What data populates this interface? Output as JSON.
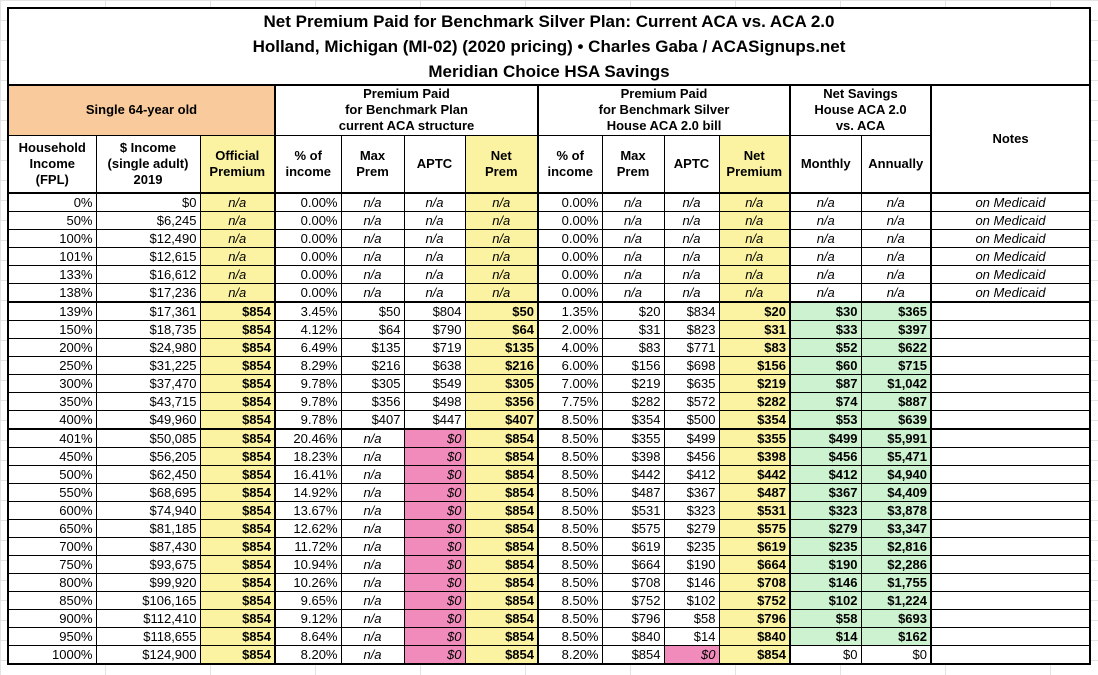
{
  "colors": {
    "orange": "#F9CB9C",
    "yellow": "#FBF3A1",
    "pink": "#F18BBB",
    "green": "#CCF2CF"
  },
  "chart_data": {
    "type": "table",
    "title": "Net Premium Paid for Benchmark Silver Plan: Current ACA vs. ACA 2.0",
    "subtitle": "Holland, Michigan (MI-02) (2020 pricing) • Charles Gaba / ACASignups.net",
    "subtitle2": "Meridian Choice HSA Savings",
    "column_groups": {
      "subject": "Single 64-year old",
      "current_aca": "Premium Paid\nfor Benchmark Plan\ncurrent ACA structure",
      "house_aca20": "Premium Paid\nfor Benchmark Silver\nHouse ACA 2.0 bill",
      "net_savings": "Net Savings\nHouse ACA 2.0\nvs. ACA",
      "notes": "Notes"
    },
    "columns": [
      {
        "label": "Household\nIncome\n(FPL)"
      },
      {
        "label": "$ Income\n(single adult)\n2019"
      },
      {
        "label": "Official\nPremium"
      },
      {
        "label": "% of\nincome"
      },
      {
        "label": "Max\nPrem"
      },
      {
        "label": "APTC"
      },
      {
        "label": "Net\nPrem"
      },
      {
        "label": "% of\nincome"
      },
      {
        "label": "Max\nPrem"
      },
      {
        "label": "APTC"
      },
      {
        "label": "Net\nPremium"
      },
      {
        "label": "Monthly"
      },
      {
        "label": "Annually"
      }
    ],
    "rows": [
      {
        "band": "medicaid",
        "cells": [
          "0%",
          "$0",
          "n/a",
          "0.00%",
          "n/a",
          "n/a",
          "n/a",
          "0.00%",
          "n/a",
          "n/a",
          "n/a",
          "n/a",
          "n/a",
          "on Medicaid"
        ]
      },
      {
        "band": "medicaid",
        "cells": [
          "50%",
          "$6,245",
          "n/a",
          "0.00%",
          "n/a",
          "n/a",
          "n/a",
          "0.00%",
          "n/a",
          "n/a",
          "n/a",
          "n/a",
          "n/a",
          "on Medicaid"
        ]
      },
      {
        "band": "medicaid",
        "cells": [
          "100%",
          "$12,490",
          "n/a",
          "0.00%",
          "n/a",
          "n/a",
          "n/a",
          "0.00%",
          "n/a",
          "n/a",
          "n/a",
          "n/a",
          "n/a",
          "on Medicaid"
        ]
      },
      {
        "band": "medicaid",
        "cells": [
          "101%",
          "$12,615",
          "n/a",
          "0.00%",
          "n/a",
          "n/a",
          "n/a",
          "0.00%",
          "n/a",
          "n/a",
          "n/a",
          "n/a",
          "n/a",
          "on Medicaid"
        ]
      },
      {
        "band": "medicaid",
        "cells": [
          "133%",
          "$16,612",
          "n/a",
          "0.00%",
          "n/a",
          "n/a",
          "n/a",
          "0.00%",
          "n/a",
          "n/a",
          "n/a",
          "n/a",
          "n/a",
          "on Medicaid"
        ]
      },
      {
        "band": "medicaid",
        "cells": [
          "138%",
          "$17,236",
          "n/a",
          "0.00%",
          "n/a",
          "n/a",
          "n/a",
          "0.00%",
          "n/a",
          "n/a",
          "n/a",
          "n/a",
          "n/a",
          "on Medicaid"
        ]
      },
      {
        "band": "subsidy",
        "cells": [
          "139%",
          "$17,361",
          "$854",
          "3.45%",
          "$50",
          "$804",
          "$50",
          "1.35%",
          "$20",
          "$834",
          "$20",
          "$30",
          "$365",
          ""
        ]
      },
      {
        "band": "subsidy",
        "cells": [
          "150%",
          "$18,735",
          "$854",
          "4.12%",
          "$64",
          "$790",
          "$64",
          "2.00%",
          "$31",
          "$823",
          "$31",
          "$33",
          "$397",
          ""
        ]
      },
      {
        "band": "subsidy",
        "cells": [
          "200%",
          "$24,980",
          "$854",
          "6.49%",
          "$135",
          "$719",
          "$135",
          "4.00%",
          "$83",
          "$771",
          "$83",
          "$52",
          "$622",
          ""
        ]
      },
      {
        "band": "subsidy",
        "cells": [
          "250%",
          "$31,225",
          "$854",
          "8.29%",
          "$216",
          "$638",
          "$216",
          "6.00%",
          "$156",
          "$698",
          "$156",
          "$60",
          "$715",
          ""
        ]
      },
      {
        "band": "subsidy",
        "cells": [
          "300%",
          "$37,470",
          "$854",
          "9.78%",
          "$305",
          "$549",
          "$305",
          "7.00%",
          "$219",
          "$635",
          "$219",
          "$87",
          "$1,042",
          ""
        ]
      },
      {
        "band": "subsidy",
        "cells": [
          "350%",
          "$43,715",
          "$854",
          "9.78%",
          "$356",
          "$498",
          "$356",
          "7.75%",
          "$282",
          "$572",
          "$282",
          "$74",
          "$887",
          ""
        ]
      },
      {
        "band": "subsidy",
        "cells": [
          "400%",
          "$49,960",
          "$854",
          "9.78%",
          "$407",
          "$447",
          "$407",
          "8.50%",
          "$354",
          "$500",
          "$354",
          "$53",
          "$639",
          ""
        ]
      },
      {
        "band": "cliff",
        "cells": [
          "401%",
          "$50,085",
          "$854",
          "20.46%",
          "n/a",
          "$0",
          "$854",
          "8.50%",
          "$355",
          "$499",
          "$355",
          "$499",
          "$5,991",
          ""
        ]
      },
      {
        "band": "cliff",
        "cells": [
          "450%",
          "$56,205",
          "$854",
          "18.23%",
          "n/a",
          "$0",
          "$854",
          "8.50%",
          "$398",
          "$456",
          "$398",
          "$456",
          "$5,471",
          ""
        ]
      },
      {
        "band": "cliff",
        "cells": [
          "500%",
          "$62,450",
          "$854",
          "16.41%",
          "n/a",
          "$0",
          "$854",
          "8.50%",
          "$442",
          "$412",
          "$442",
          "$412",
          "$4,940",
          ""
        ]
      },
      {
        "band": "cliff",
        "cells": [
          "550%",
          "$68,695",
          "$854",
          "14.92%",
          "n/a",
          "$0",
          "$854",
          "8.50%",
          "$487",
          "$367",
          "$487",
          "$367",
          "$4,409",
          ""
        ]
      },
      {
        "band": "cliff",
        "cells": [
          "600%",
          "$74,940",
          "$854",
          "13.67%",
          "n/a",
          "$0",
          "$854",
          "8.50%",
          "$531",
          "$323",
          "$531",
          "$323",
          "$3,878",
          ""
        ]
      },
      {
        "band": "cliff",
        "cells": [
          "650%",
          "$81,185",
          "$854",
          "12.62%",
          "n/a",
          "$0",
          "$854",
          "8.50%",
          "$575",
          "$279",
          "$575",
          "$279",
          "$3,347",
          ""
        ]
      },
      {
        "band": "cliff",
        "cells": [
          "700%",
          "$87,430",
          "$854",
          "11.72%",
          "n/a",
          "$0",
          "$854",
          "8.50%",
          "$619",
          "$235",
          "$619",
          "$235",
          "$2,816",
          ""
        ]
      },
      {
        "band": "cliff",
        "cells": [
          "750%",
          "$93,675",
          "$854",
          "10.94%",
          "n/a",
          "$0",
          "$854",
          "8.50%",
          "$664",
          "$190",
          "$664",
          "$190",
          "$2,286",
          ""
        ]
      },
      {
        "band": "cliff",
        "cells": [
          "800%",
          "$99,920",
          "$854",
          "10.26%",
          "n/a",
          "$0",
          "$854",
          "8.50%",
          "$708",
          "$146",
          "$708",
          "$146",
          "$1,755",
          ""
        ]
      },
      {
        "band": "cliff",
        "cells": [
          "850%",
          "$106,165",
          "$854",
          "9.65%",
          "n/a",
          "$0",
          "$854",
          "8.50%",
          "$752",
          "$102",
          "$752",
          "$102",
          "$1,224",
          ""
        ]
      },
      {
        "band": "cliff",
        "cells": [
          "900%",
          "$112,410",
          "$854",
          "9.12%",
          "n/a",
          "$0",
          "$854",
          "8.50%",
          "$796",
          "$58",
          "$796",
          "$58",
          "$693",
          ""
        ]
      },
      {
        "band": "cliff",
        "cells": [
          "950%",
          "$118,655",
          "$854",
          "8.64%",
          "n/a",
          "$0",
          "$854",
          "8.50%",
          "$840",
          "$14",
          "$840",
          "$14",
          "$162",
          ""
        ]
      },
      {
        "band": "cap",
        "cells": [
          "1000%",
          "$124,900",
          "$854",
          "8.20%",
          "n/a",
          "$0",
          "$854",
          "8.20%",
          "$854",
          "$0",
          "$854",
          "$0",
          "$0",
          ""
        ]
      }
    ]
  }
}
